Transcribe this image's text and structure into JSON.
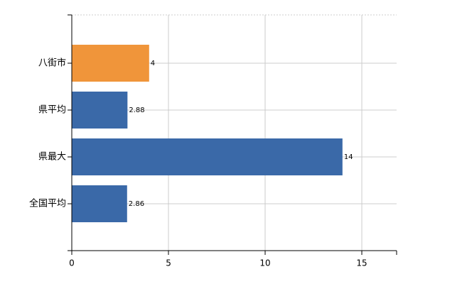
{
  "chart_data": {
    "type": "bar",
    "orientation": "horizontal",
    "categories": [
      "八街市",
      "県平均",
      "県最大",
      "全国平均"
    ],
    "values": [
      4,
      2.88,
      14,
      2.86
    ],
    "colors": [
      "#f0953a",
      "#3a69a8",
      "#3a69a8",
      "#3a69a8"
    ],
    "xlim": [
      0,
      16.8
    ],
    "xticks": [
      0,
      5,
      10,
      15
    ],
    "grid": true,
    "data_labels": true
  }
}
